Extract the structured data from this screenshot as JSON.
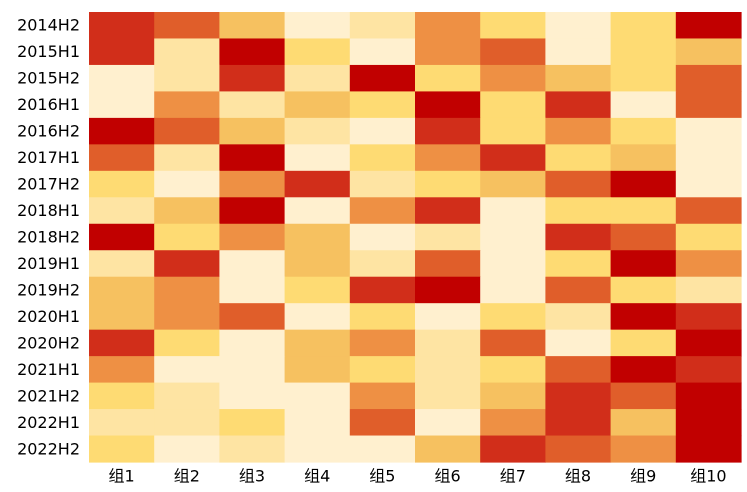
{
  "chart_data": {
    "type": "heatmap",
    "rows": [
      "2014H2",
      "2015H1",
      "2015H2",
      "2016H1",
      "2016H2",
      "2017H1",
      "2017H2",
      "2018H1",
      "2018H2",
      "2019H1",
      "2019H2",
      "2020H1",
      "2020H2",
      "2021H1",
      "2021H2",
      "2022H1",
      "2022H2"
    ],
    "columns": [
      "组1",
      "组2",
      "组3",
      "组4",
      "组5",
      "组6",
      "组7",
      "组8",
      "组9",
      "组10"
    ],
    "values": [
      [
        7,
        6,
        4,
        1,
        2,
        5,
        3,
        1,
        3,
        8
      ],
      [
        7,
        2,
        8,
        3,
        1,
        5,
        6,
        0,
        3,
        4
      ],
      [
        1,
        2,
        7,
        2,
        8,
        3,
        5,
        4,
        3,
        6
      ],
      [
        1,
        5,
        2,
        4,
        3,
        8,
        3,
        7,
        1,
        6
      ],
      [
        8,
        6,
        4,
        2,
        1,
        7,
        3,
        5,
        3,
        0
      ],
      [
        6,
        2,
        8,
        1,
        3,
        5,
        7,
        3,
        4,
        0
      ],
      [
        3,
        1,
        5,
        7,
        2,
        3,
        4,
        6,
        8,
        0
      ],
      [
        2,
        4,
        8,
        1,
        5,
        7,
        0,
        3,
        3,
        6
      ],
      [
        8,
        3,
        5,
        4,
        1,
        2,
        0,
        7,
        6,
        3
      ],
      [
        2,
        7,
        1,
        4,
        2,
        6,
        0,
        3,
        8,
        5
      ],
      [
        4,
        5,
        1,
        3,
        7,
        8,
        0,
        6,
        3,
        2
      ],
      [
        4,
        5,
        6,
        1,
        3,
        1,
        3,
        2,
        8,
        7
      ],
      [
        7,
        3,
        0,
        4,
        5,
        2,
        6,
        1,
        3,
        8
      ],
      [
        5,
        1,
        1,
        4,
        3,
        2,
        3,
        6,
        8,
        7
      ],
      [
        3,
        2,
        1,
        1,
        5,
        2,
        4,
        7,
        6,
        8
      ],
      [
        2,
        2,
        3,
        0,
        6,
        1,
        5,
        7,
        4,
        8
      ],
      [
        3,
        0,
        2,
        1,
        0,
        4,
        7,
        6,
        5,
        8
      ]
    ],
    "value_range": [
      0,
      8
    ],
    "colors": [
      "#fff0cf",
      "#fff0cf",
      "#fee4a3",
      "#fedb73",
      "#f6c160",
      "#ee9044",
      "#e05e2a",
      "#d12e1a",
      "#c10000"
    ],
    "grid": false,
    "legend": "none"
  }
}
